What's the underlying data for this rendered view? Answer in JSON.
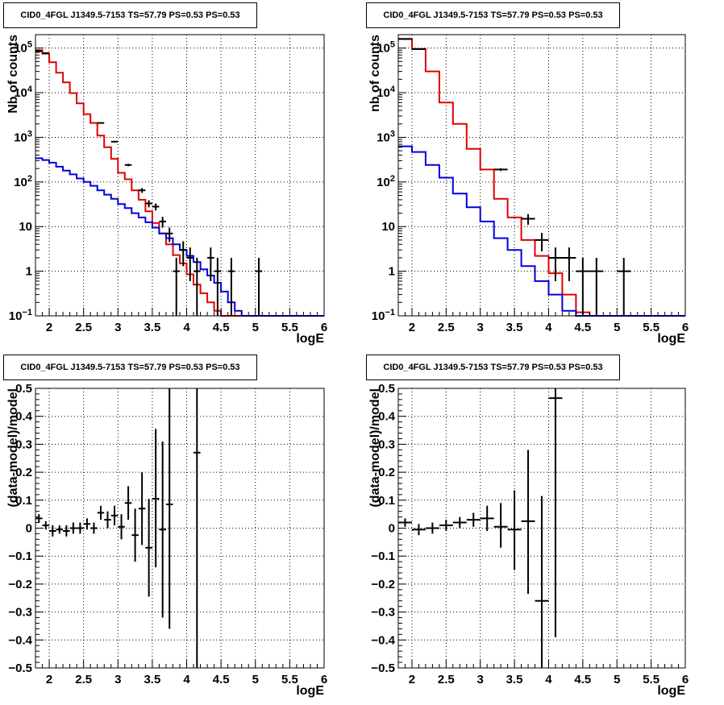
{
  "chart_data": [
    {
      "type": "line",
      "title": "CID0_4FGL J1349.5-7153 TS=57.79 PS=0.53 PS=0.53",
      "xlabel": "logE",
      "ylabel": "Nb of counts",
      "xlim": [
        1.8,
        6
      ],
      "ylim": [
        0.1,
        200000
      ],
      "yscale": "log",
      "grid": true,
      "xticks": [
        "2",
        "2.5",
        "3",
        "3.5",
        "4",
        "4.5",
        "5",
        "5.5",
        "6"
      ],
      "yticks": [
        {
          "v": 0.1,
          "base": "10",
          "exp": "−1"
        },
        {
          "v": 1,
          "label": "1"
        },
        {
          "v": 10,
          "label": "10"
        },
        {
          "v": 100,
          "base": "10",
          "exp": "2"
        },
        {
          "v": 1000,
          "base": "10",
          "exp": "3"
        },
        {
          "v": 10000,
          "base": "10",
          "exp": "4"
        },
        {
          "v": 100000,
          "base": "10",
          "exp": "5"
        }
      ],
      "bin_edges": [
        1.8,
        1.9,
        2.0,
        2.1,
        2.2,
        2.3,
        2.4,
        2.5,
        2.6,
        2.7,
        2.8,
        2.9,
        3.0,
        3.1,
        3.2,
        3.3,
        3.4,
        3.5,
        3.6,
        3.7,
        3.8,
        3.9,
        4.0,
        4.1,
        4.2,
        4.3,
        4.4,
        4.5,
        4.6,
        4.7,
        4.8,
        4.9,
        5.0,
        5.1,
        5.2,
        5.3,
        5.4,
        5.5,
        5.6,
        5.7,
        5.8,
        5.9,
        6.0
      ],
      "series": [
        {
          "color": "#e00000",
          "values": [
            90000,
            75000,
            48000,
            28000,
            17000,
            9800,
            5800,
            3300,
            2100,
            1100,
            600,
            330,
            160,
            115,
            65,
            40,
            22,
            12,
            7,
            4,
            2.3,
            1.5,
            0.85,
            0.5,
            0.32,
            0.2,
            0.13,
            0.1,
            0.1,
            0.1,
            0.1,
            0.1,
            0.1,
            0.1,
            0.1,
            0.1,
            0.1,
            0.1,
            0.1,
            0.1,
            0.1,
            0.1
          ]
        },
        {
          "color": "#0000dd",
          "values": [
            340,
            310,
            270,
            220,
            180,
            148,
            120,
            100,
            82,
            65,
            52,
            42,
            32,
            26,
            20,
            16,
            12.5,
            9.5,
            7,
            5.5,
            4,
            3,
            2.2,
            1.6,
            1.1,
            0.8,
            0.55,
            0.35,
            0.2,
            0.13,
            0.1,
            0.1,
            0.1,
            0.1,
            0.1,
            0.1,
            0.1,
            0.1,
            0.1,
            0.1,
            0.1,
            0.1
          ]
        }
      ],
      "points": [
        {
          "x": 1.85,
          "y": 85000,
          "lo": 84400,
          "hi": 85600,
          "xw": 0.05
        },
        {
          "x": 1.95,
          "y": 77000,
          "lo": 76400,
          "hi": 77600,
          "xw": 0.05
        },
        {
          "x": 2.75,
          "y": 2100,
          "lo": 2050,
          "hi": 2150,
          "xw": 0.05
        },
        {
          "x": 2.95,
          "y": 800,
          "lo": 770,
          "hi": 830,
          "xw": 0.05
        },
        {
          "x": 3.15,
          "y": 240,
          "lo": 225,
          "hi": 255,
          "xw": 0.05
        },
        {
          "x": 3.35,
          "y": 65,
          "lo": 57,
          "hi": 73,
          "xw": 0.05
        },
        {
          "x": 3.45,
          "y": 33,
          "lo": 27,
          "hi": 39,
          "xw": 0.05
        },
        {
          "x": 3.55,
          "y": 28,
          "lo": 23,
          "hi": 33,
          "xw": 0.05
        },
        {
          "x": 3.65,
          "y": 13,
          "lo": 9.5,
          "hi": 16.5,
          "xw": 0.05
        },
        {
          "x": 3.75,
          "y": 7,
          "lo": 4.5,
          "hi": 9.5,
          "xw": 0.05
        },
        {
          "x": 3.85,
          "y": 1,
          "lo": 0.1,
          "hi": 2,
          "xw": 0.05
        },
        {
          "x": 3.95,
          "y": 3,
          "lo": 1.3,
          "hi": 4.7,
          "xw": 0.05
        },
        {
          "x": 4.05,
          "y": 2,
          "lo": 0.6,
          "hi": 3.4,
          "xw": 0.05
        },
        {
          "x": 4.15,
          "y": 1,
          "lo": 0.1,
          "hi": 2,
          "xw": 0.05
        },
        {
          "x": 4.35,
          "y": 2,
          "lo": 0.6,
          "hi": 3.4,
          "xw": 0.05
        },
        {
          "x": 4.45,
          "y": 1,
          "lo": 0.1,
          "hi": 2,
          "xw": 0.05
        },
        {
          "x": 4.65,
          "y": 1,
          "lo": 0.1,
          "hi": 2,
          "xw": 0.05
        },
        {
          "x": 5.05,
          "y": 1,
          "lo": 0.1,
          "hi": 2,
          "xw": 0.05
        }
      ]
    },
    {
      "type": "line",
      "title": "CID0_4FGL J1349.5-7153 TS=57.79 PS=0.53 PS=0.53",
      "xlabel": "logE",
      "ylabel": "nb of counts",
      "xlim": [
        1.8,
        6
      ],
      "ylim": [
        0.1,
        200000
      ],
      "yscale": "log",
      "grid": true,
      "xticks": [
        "2",
        "2.5",
        "3",
        "3.5",
        "4",
        "4.5",
        "5",
        "5.5",
        "6"
      ],
      "yticks": [
        {
          "v": 0.1,
          "base": "10",
          "exp": "−1"
        },
        {
          "v": 1,
          "label": "1"
        },
        {
          "v": 10,
          "label": "10"
        },
        {
          "v": 100,
          "base": "10",
          "exp": "2"
        },
        {
          "v": 1000,
          "base": "10",
          "exp": "3"
        },
        {
          "v": 10000,
          "base": "10",
          "exp": "4"
        },
        {
          "v": 100000,
          "base": "10",
          "exp": "5"
        }
      ],
      "bin_edges": [
        1.8,
        2.0,
        2.2,
        2.4,
        2.6,
        2.8,
        3.0,
        3.2,
        3.4,
        3.6,
        3.8,
        4.0,
        4.2,
        4.4,
        4.6,
        4.8,
        5.0,
        5.2,
        5.4,
        5.6,
        5.8,
        6.0
      ],
      "series": [
        {
          "color": "#e00000",
          "values": [
            160000,
            95000,
            30000,
            6000,
            2000,
            550,
            190,
            42,
            16,
            5,
            2.2,
            0.9,
            0.3,
            0.12,
            0.1,
            0.1,
            0.1,
            0.1,
            0.1,
            0.1,
            0.1
          ]
        },
        {
          "color": "#0000dd",
          "values": [
            630,
            470,
            240,
            125,
            55,
            27,
            13,
            5.5,
            3,
            1.3,
            0.6,
            0.3,
            0.13,
            0.1,
            0.1,
            0.1,
            0.1,
            0.1,
            0.1,
            0.1,
            0.1
          ]
        }
      ],
      "points": [
        {
          "x": 1.9,
          "y": 160000,
          "lo": 159200,
          "hi": 160800,
          "xw": 0.1
        },
        {
          "x": 2.1,
          "y": 95000,
          "lo": 94400,
          "hi": 95600,
          "xw": 0.1
        },
        {
          "x": 3.3,
          "y": 190,
          "lo": 176,
          "hi": 204,
          "xw": 0.1
        },
        {
          "x": 3.7,
          "y": 15,
          "lo": 11,
          "hi": 19,
          "xw": 0.1
        },
        {
          "x": 3.9,
          "y": 5,
          "lo": 2.8,
          "hi": 7.2,
          "xw": 0.1
        },
        {
          "x": 4.1,
          "y": 2,
          "lo": 0.6,
          "hi": 3.4,
          "xw": 0.1
        },
        {
          "x": 4.3,
          "y": 2,
          "lo": 0.6,
          "hi": 3.4,
          "xw": 0.1
        },
        {
          "x": 4.5,
          "y": 1,
          "lo": 0.1,
          "hi": 2,
          "xw": 0.1
        },
        {
          "x": 4.7,
          "y": 1,
          "lo": 0.1,
          "hi": 2,
          "xw": 0.1
        },
        {
          "x": 5.1,
          "y": 1,
          "lo": 0.1,
          "hi": 2,
          "xw": 0.1
        }
      ]
    },
    {
      "type": "scatter",
      "title": "CID0_4FGL J1349.5-7153 TS=57.79 PS=0.53 PS=0.53",
      "xlabel": "logE",
      "ylabel": "(data-model)/model",
      "xlim": [
        1.8,
        6
      ],
      "ylim": [
        -0.5,
        0.5
      ],
      "yscale": "linear",
      "grid": true,
      "xticks": [
        "2",
        "2.5",
        "3",
        "3.5",
        "4",
        "4.5",
        "5",
        "5.5",
        "6"
      ],
      "yticks": [
        {
          "v": -0.5,
          "label": "−0.5"
        },
        {
          "v": -0.4,
          "label": "−0.4"
        },
        {
          "v": -0.3,
          "label": "−0.3"
        },
        {
          "v": -0.2,
          "label": "−0.2"
        },
        {
          "v": -0.1,
          "label": "−0.1"
        },
        {
          "v": 0,
          "label": "0"
        },
        {
          "v": 0.1,
          "label": "0.1"
        },
        {
          "v": 0.2,
          "label": "0.2"
        },
        {
          "v": 0.3,
          "label": "0.3"
        },
        {
          "v": 0.4,
          "label": "0.4"
        },
        {
          "v": 0.5,
          "label": "0.5"
        }
      ],
      "points": [
        {
          "x": 1.85,
          "y": 0.035,
          "lo": 0.02,
          "hi": 0.05,
          "xw": 0.05
        },
        {
          "x": 1.95,
          "y": 0.01,
          "lo": -0.005,
          "hi": 0.025,
          "xw": 0.05
        },
        {
          "x": 2.05,
          "y": -0.01,
          "lo": -0.03,
          "hi": 0.01,
          "xw": 0.05
        },
        {
          "x": 2.15,
          "y": -0.005,
          "lo": -0.02,
          "hi": 0.01,
          "xw": 0.05
        },
        {
          "x": 2.25,
          "y": -0.01,
          "lo": -0.03,
          "hi": 0.01,
          "xw": 0.05
        },
        {
          "x": 2.35,
          "y": 0.0,
          "lo": -0.02,
          "hi": 0.02,
          "xw": 0.05
        },
        {
          "x": 2.45,
          "y": 0.0,
          "lo": -0.02,
          "hi": 0.02,
          "xw": 0.05
        },
        {
          "x": 2.55,
          "y": 0.015,
          "lo": -0.005,
          "hi": 0.035,
          "xw": 0.05
        },
        {
          "x": 2.65,
          "y": 0.0,
          "lo": -0.02,
          "hi": 0.02,
          "xw": 0.05
        },
        {
          "x": 2.75,
          "y": 0.055,
          "lo": 0.03,
          "hi": 0.08,
          "xw": 0.05
        },
        {
          "x": 2.85,
          "y": 0.03,
          "lo": 0.0,
          "hi": 0.06,
          "xw": 0.05
        },
        {
          "x": 2.95,
          "y": 0.045,
          "lo": 0.01,
          "hi": 0.08,
          "xw": 0.05
        },
        {
          "x": 3.05,
          "y": 0.005,
          "lo": -0.04,
          "hi": 0.05,
          "xw": 0.05
        },
        {
          "x": 3.15,
          "y": 0.09,
          "lo": 0.03,
          "hi": 0.15,
          "xw": 0.05
        },
        {
          "x": 3.25,
          "y": -0.025,
          "lo": -0.12,
          "hi": 0.07,
          "xw": 0.05
        },
        {
          "x": 3.35,
          "y": 0.07,
          "lo": -0.06,
          "hi": 0.2,
          "xw": 0.05
        },
        {
          "x": 3.45,
          "y": -0.07,
          "lo": -0.245,
          "hi": 0.105,
          "xw": 0.05
        },
        {
          "x": 3.55,
          "y": 0.105,
          "lo": -0.14,
          "hi": 0.355,
          "xw": 0.05
        },
        {
          "x": 3.65,
          "y": -0.005,
          "lo": -0.32,
          "hi": 0.31,
          "xw": 0.05
        },
        {
          "x": 3.75,
          "y": 0.085,
          "lo": -0.36,
          "hi": 0.5,
          "xw": 0.05
        },
        {
          "x": 4.15,
          "y": 0.27,
          "lo": -0.5,
          "hi": 0.5,
          "xw": 0.05
        }
      ]
    },
    {
      "type": "scatter",
      "title": "CID0_4FGL J1349.5-7153 TS=57.79 PS=0.53 PS=0.53",
      "xlabel": "logE",
      "ylabel": "(data-model)/model",
      "xlim": [
        1.8,
        6
      ],
      "ylim": [
        -0.5,
        0.5
      ],
      "yscale": "linear",
      "grid": true,
      "xticks": [
        "2",
        "2.5",
        "3",
        "3.5",
        "4",
        "4.5",
        "5",
        "5.5",
        "6"
      ],
      "yticks": [
        {
          "v": -0.5,
          "label": "−0.5"
        },
        {
          "v": -0.4,
          "label": "−0.4"
        },
        {
          "v": -0.3,
          "label": "−0.3"
        },
        {
          "v": -0.2,
          "label": "−0.2"
        },
        {
          "v": -0.1,
          "label": "−0.1"
        },
        {
          "v": 0,
          "label": "0"
        },
        {
          "v": 0.1,
          "label": "0.1"
        },
        {
          "v": 0.2,
          "label": "0.2"
        },
        {
          "v": 0.3,
          "label": "0.3"
        },
        {
          "v": 0.4,
          "label": "0.4"
        },
        {
          "v": 0.5,
          "label": "0.5"
        }
      ],
      "points": [
        {
          "x": 1.9,
          "y": 0.02,
          "lo": 0.005,
          "hi": 0.035,
          "xw": 0.1
        },
        {
          "x": 2.1,
          "y": -0.005,
          "lo": -0.025,
          "hi": 0.015,
          "xw": 0.1
        },
        {
          "x": 2.3,
          "y": 0.0,
          "lo": -0.02,
          "hi": 0.02,
          "xw": 0.1
        },
        {
          "x": 2.5,
          "y": 0.01,
          "lo": -0.01,
          "hi": 0.03,
          "xw": 0.1
        },
        {
          "x": 2.7,
          "y": 0.02,
          "lo": 0.0,
          "hi": 0.04,
          "xw": 0.1
        },
        {
          "x": 2.9,
          "y": 0.03,
          "lo": 0.005,
          "hi": 0.055,
          "xw": 0.1
        },
        {
          "x": 3.1,
          "y": 0.035,
          "lo": -0.01,
          "hi": 0.08,
          "xw": 0.1
        },
        {
          "x": 3.3,
          "y": 0.005,
          "lo": -0.07,
          "hi": 0.09,
          "xw": 0.1
        },
        {
          "x": 3.5,
          "y": -0.005,
          "lo": -0.15,
          "hi": 0.135,
          "xw": 0.1
        },
        {
          "x": 3.7,
          "y": 0.025,
          "lo": -0.235,
          "hi": 0.28,
          "xw": 0.1
        },
        {
          "x": 3.9,
          "y": -0.26,
          "lo": -0.5,
          "hi": 0.115,
          "xw": 0.1
        },
        {
          "x": 4.1,
          "y": 0.465,
          "lo": -0.39,
          "hi": 0.5,
          "xw": 0.1
        }
      ]
    }
  ]
}
